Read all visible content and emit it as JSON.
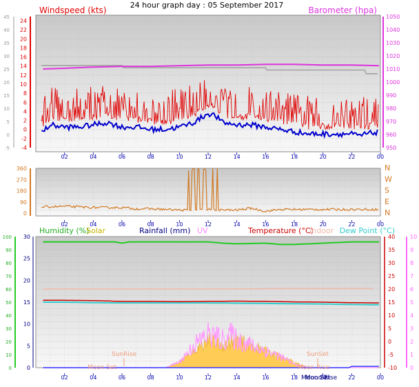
{
  "title": "24 hour graph day : 05 September 2017",
  "colors": {
    "windspeed": "#e00000",
    "windavg": "#0000cc",
    "barometer": "#dd33dd",
    "gust_grey": "#a0a0a0",
    "winddir": "#d07820",
    "humidity": "#22cc22",
    "solar": "#c8b400",
    "rainfall": "#000080",
    "uv": "#ff99ff",
    "temperature": "#cc0000",
    "indoor": "#f0b8a8",
    "dewpoint": "#33cccc",
    "solar_fill": "#ffcc55",
    "sunmoon": "#f0a080"
  },
  "panels": {
    "wind": {
      "left_label": "Windspeed (kts)",
      "right_label": "Barometer (hpa)",
      "left_ticks": [
        "24",
        "22",
        "20",
        "18",
        "16",
        "14",
        "12",
        "10",
        "8",
        "6",
        "4",
        "2",
        "0",
        "-2",
        "-4"
      ],
      "left_grey_ticks": [
        "45",
        "40",
        "35",
        "30",
        "25",
        "20",
        "15",
        "10",
        "5",
        "0",
        "-5"
      ],
      "right_ticks": [
        "1050",
        "1040",
        "1030",
        "1020",
        "1010",
        "1000",
        "990",
        "980",
        "970",
        "960",
        "950"
      ],
      "x_ticks": [
        "02",
        "04",
        "06",
        "08",
        "10",
        "12",
        "14",
        "16",
        "18",
        "20",
        "22",
        "00"
      ]
    },
    "dir": {
      "left_ticks": [
        "360",
        "270",
        "180",
        "90",
        "0"
      ],
      "right_ticks": [
        "N",
        "W",
        "S",
        "E",
        "N"
      ],
      "x_ticks": [
        "02",
        "04",
        "06",
        "08",
        "10",
        "12",
        "14",
        "16",
        "18",
        "20",
        "22",
        "00"
      ]
    },
    "env": {
      "legend": {
        "humidity": "Humidity (%)",
        "solar": "Solar",
        "rainfall": "Rainfall (mm)",
        "uv": "UV",
        "temperature": "Temperature (°C)",
        "indoor": "Indoor",
        "dewpoint": "Dew Point (°C)"
      },
      "humidity_ticks": [
        "100",
        "90",
        "80",
        "70",
        "60",
        "50",
        "40",
        "30",
        "20",
        "10",
        "0"
      ],
      "rain_ticks": [
        "30",
        "25",
        "20",
        "15",
        "10",
        "5",
        "0"
      ],
      "temp_ticks": [
        "40",
        "35",
        "30",
        "25",
        "20",
        "15",
        "10",
        "5",
        "0",
        "-5",
        "-10"
      ],
      "uv_ticks": [
        "10",
        "9",
        "8",
        "7",
        "6",
        "5",
        "4",
        "3",
        "2",
        "1",
        "0"
      ],
      "x_ticks": [
        "02",
        "04",
        "06",
        "08",
        "10",
        "12",
        "14",
        "16",
        "18",
        "20",
        "22",
        "00"
      ],
      "sunrise": "SunRise",
      "sunset": "SunSet",
      "moonset": "Moon Set",
      "moonrise": "Moon Rise"
    }
  },
  "chart_data": [
    {
      "type": "line",
      "title": "Windspeed (kts)",
      "ylim": [
        -4,
        25
      ],
      "series": [
        {
          "name": "Windspeed (kts)",
          "x": [
            0.5,
            1,
            2,
            3,
            4,
            5,
            6,
            7,
            8,
            9,
            10,
            11,
            11.5,
            12,
            12.5,
            13,
            14,
            15,
            16,
            17,
            18,
            19,
            20,
            21,
            22,
            22.5,
            23,
            24
          ],
          "values": [
            3,
            4.5,
            4,
            4,
            4.5,
            5,
            4,
            4,
            3.5,
            3.5,
            4,
            5,
            6,
            7,
            6.5,
            5,
            4.5,
            4.5,
            4,
            3.5,
            3,
            2.5,
            2.5,
            2.5,
            2.5,
            2,
            2.5,
            3
          ]
        },
        {
          "name": "Barometer (hpa)",
          "x": [
            0.5,
            2,
            4,
            6,
            8,
            10,
            12,
            14,
            16,
            18,
            20,
            22,
            23.9
          ],
          "values": [
            1010,
            1010.5,
            1011.5,
            1012,
            1012,
            1012.5,
            1013,
            1013,
            1013.5,
            1013.5,
            1013,
            1013,
            1012.5
          ]
        }
      ]
    },
    {
      "type": "line",
      "ylim": [
        0,
        360
      ],
      "series": [
        {
          "x": [
            0.5,
            2,
            4,
            6,
            7,
            8,
            9,
            10,
            10.5,
            11,
            12,
            13,
            14,
            15,
            16,
            17,
            18,
            20,
            22,
            23.9
          ],
          "values": [
            50,
            55,
            45,
            45,
            35,
            35,
            30,
            25,
            25,
            20,
            30,
            25,
            25,
            40,
            15,
            30,
            30,
            30,
            30,
            30
          ]
        }
      ]
    },
    {
      "type": "line",
      "ylim": [
        0,
        100
      ],
      "series": [
        {
          "name": "Humidity (%)",
          "x": [
            0.5,
            4,
            5.5,
            6,
            6.5,
            8,
            12,
            13,
            14,
            16,
            17,
            18,
            19,
            20,
            22,
            23.9
          ],
          "values": [
            96,
            96,
            96,
            95,
            96,
            96,
            96,
            95,
            94.5,
            95,
            94,
            94,
            94.5,
            95,
            96,
            96
          ]
        },
        {
          "name": "Temperature (°C)",
          "x": [
            0.5,
            2,
            4,
            6,
            8,
            10,
            12,
            14,
            16,
            18,
            20,
            22,
            23.9
          ],
          "values": [
            15.7,
            15.7,
            15.6,
            15.3,
            15.3,
            15.2,
            15.3,
            15.4,
            15.3,
            15.1,
            15.0,
            14.8,
            14.7
          ]
        },
        {
          "name": "Dew Point (°C)",
          "x": [
            0.5,
            2,
            4,
            6,
            8,
            10,
            12,
            14,
            16,
            18,
            20,
            22,
            23.9
          ],
          "values": [
            15.0,
            15.0,
            14.8,
            14.7,
            14.7,
            14.7,
            14.7,
            14.6,
            14.5,
            14.4,
            14.3,
            14.1,
            14.0
          ]
        },
        {
          "name": "Indoor",
          "x": [
            0.5,
            6,
            12,
            18,
            23.9
          ],
          "values": [
            20,
            20,
            20,
            20.2,
            20.2
          ]
        },
        {
          "name": "Solar",
          "x": [
            0.5,
            6,
            8,
            9,
            10,
            11,
            11.5,
            12,
            13,
            14,
            15,
            16,
            17,
            18,
            19,
            23.9
          ],
          "values": [
            0,
            0,
            0,
            0,
            1,
            3,
            4,
            5,
            4,
            5,
            4,
            3,
            2,
            1,
            0,
            0
          ]
        },
        {
          "name": "UV",
          "x": [
            0.5,
            8,
            9,
            10,
            11,
            11.5,
            12,
            13,
            13.5,
            14,
            15,
            16,
            17,
            18,
            19,
            23.9
          ],
          "values": [
            0,
            0,
            0,
            0.5,
            2,
            2.5,
            3,
            2.5,
            3,
            2.5,
            2,
            1.5,
            1,
            0.3,
            0,
            0
          ]
        },
        {
          "name": "Rainfall (mm)",
          "x": [
            0.5,
            21.8,
            22,
            23.9
          ],
          "values": [
            0,
            0,
            0.5,
            0.5
          ]
        }
      ]
    }
  ]
}
